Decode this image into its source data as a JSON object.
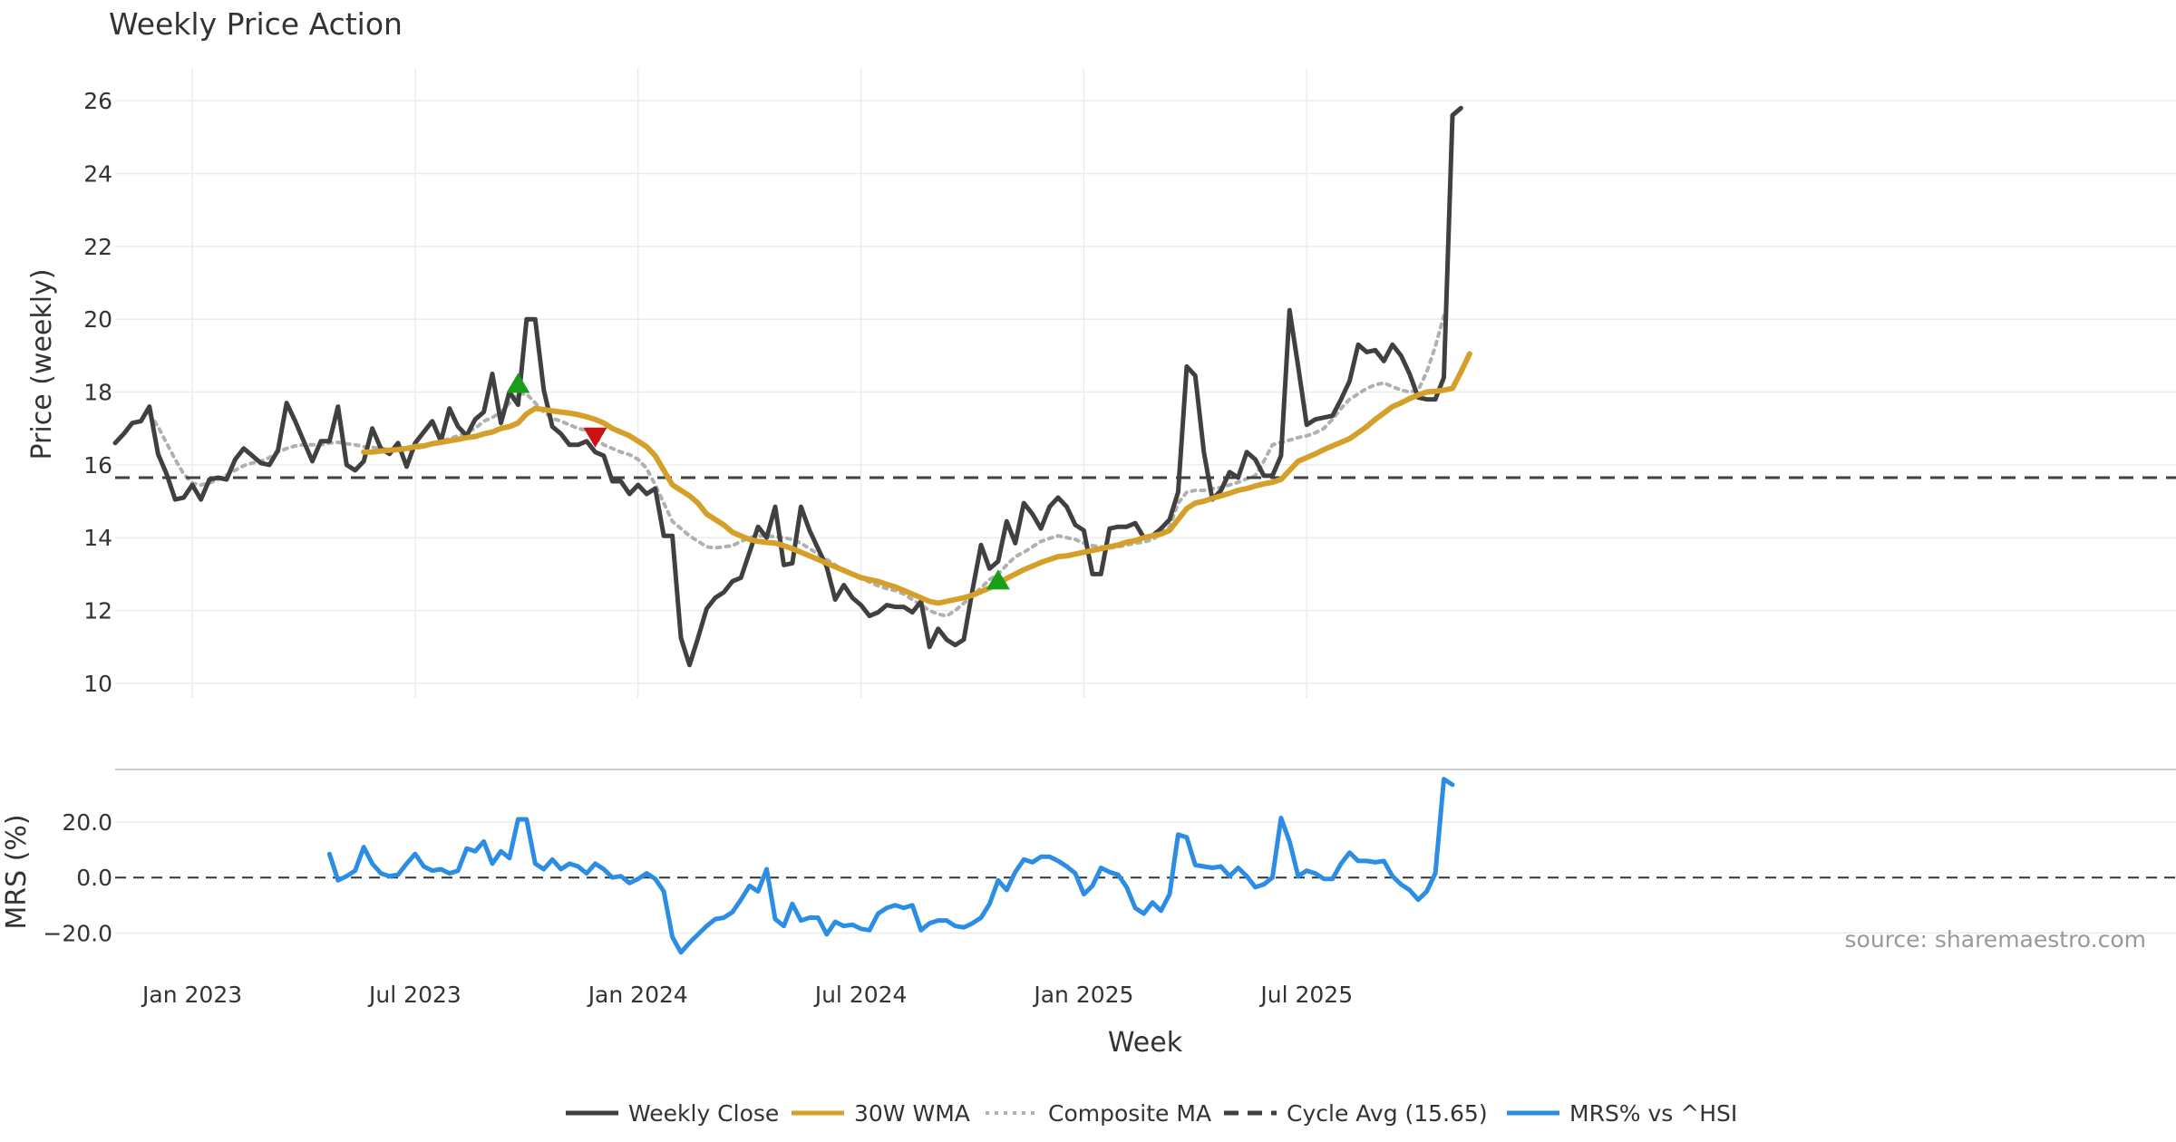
{
  "chart_data": [
    {
      "type": "line",
      "title": "Weekly Price Action",
      "ylabel": "Price (weekly)",
      "xlabel": "Week",
      "ylim": [
        9.6,
        26.9
      ],
      "yticks": [
        10,
        12,
        14,
        16,
        18,
        20,
        22,
        24,
        26
      ],
      "xticks": [
        "Jan 2023",
        "Jul 2023",
        "Jan 2024",
        "Jul 2024",
        "Jan 2025",
        "Jul 2025"
      ],
      "grid": true,
      "x_start_week": 0,
      "series": [
        {
          "name": "Weekly Close",
          "color": "#404040",
          "style": "solid",
          "values": [
            16.6,
            16.85,
            17.15,
            17.2,
            17.6,
            16.3,
            15.75,
            15.05,
            15.1,
            15.45,
            15.05,
            15.6,
            15.65,
            15.6,
            16.15,
            16.45,
            16.25,
            16.05,
            16.0,
            16.4,
            17.7,
            17.2,
            16.65,
            16.1,
            16.65,
            16.65,
            17.6,
            16.0,
            15.85,
            16.1,
            17.0,
            16.45,
            16.3,
            16.6,
            15.95,
            16.6,
            16.9,
            17.2,
            16.65,
            17.55,
            17.05,
            16.8,
            17.25,
            17.45,
            18.5,
            17.15,
            18.0,
            17.65,
            20.0,
            20.0,
            18.05,
            17.05,
            16.85,
            16.55,
            16.55,
            16.65,
            16.35,
            16.25,
            15.55,
            15.55,
            15.2,
            15.45,
            15.2,
            15.35,
            14.05,
            14.05,
            11.25,
            10.5,
            11.25,
            12.05,
            12.35,
            12.5,
            12.8,
            12.9,
            13.6,
            14.3,
            14.0,
            14.85,
            13.25,
            13.3,
            14.85,
            14.2,
            13.7,
            13.2,
            12.3,
            12.7,
            12.35,
            12.15,
            11.85,
            11.95,
            12.15,
            12.1,
            12.1,
            11.95,
            12.25,
            11.0,
            11.5,
            11.2,
            11.05,
            11.2,
            12.55,
            13.8,
            13.15,
            13.35,
            14.45,
            13.85,
            14.95,
            14.65,
            14.25,
            14.85,
            15.1,
            14.85,
            14.35,
            14.2,
            13.0,
            13.0,
            14.25,
            14.3,
            14.3,
            14.4,
            14.0,
            14.05,
            14.25,
            14.5,
            15.25,
            18.7,
            18.45,
            16.35,
            15.05,
            15.3,
            15.8,
            15.65,
            16.35,
            16.15,
            15.7,
            15.7,
            16.25,
            20.25,
            18.7,
            17.1,
            17.25,
            17.3,
            17.35,
            17.8,
            18.3,
            19.3,
            19.1,
            19.15,
            18.85,
            19.3,
            19.0,
            18.5,
            17.85,
            17.8,
            17.8,
            18.4,
            25.6,
            25.8
          ]
        },
        {
          "name": "30W WMA",
          "color": "#d4a02a",
          "style": "solid",
          "start_week": 29,
          "values": [
            16.35,
            16.35,
            16.38,
            16.4,
            16.42,
            16.45,
            16.5,
            16.52,
            16.58,
            16.62,
            16.66,
            16.7,
            16.75,
            16.78,
            16.85,
            16.9,
            17.0,
            17.05,
            17.15,
            17.4,
            17.55,
            17.52,
            17.48,
            17.45,
            17.42,
            17.38,
            17.32,
            17.25,
            17.15,
            17.0,
            16.9,
            16.8,
            16.65,
            16.5,
            16.25,
            15.85,
            15.45,
            15.3,
            15.15,
            14.95,
            14.65,
            14.5,
            14.35,
            14.15,
            14.05,
            13.95,
            13.9,
            13.87,
            13.85,
            13.78,
            13.7,
            13.6,
            13.5,
            13.4,
            13.3,
            13.2,
            13.1,
            13.0,
            12.9,
            12.85,
            12.8,
            12.72,
            12.65,
            12.55,
            12.45,
            12.35,
            12.25,
            12.2,
            12.25,
            12.3,
            12.35,
            12.42,
            12.52,
            12.62,
            12.75,
            12.88,
            13.0,
            13.12,
            13.22,
            13.32,
            13.4,
            13.48,
            13.5,
            13.55,
            13.6,
            13.65,
            13.7,
            13.75,
            13.8,
            13.88,
            13.92,
            14.0,
            14.05,
            14.1,
            14.2,
            14.5,
            14.8,
            14.95,
            15.0,
            15.08,
            15.15,
            15.22,
            15.3,
            15.35,
            15.42,
            15.48,
            15.52,
            15.6,
            15.85,
            16.1,
            16.2,
            16.3,
            16.42,
            16.52,
            16.62,
            16.72,
            16.88,
            17.05,
            17.25,
            17.42,
            17.6,
            17.7,
            17.82,
            17.92,
            18.0,
            18.02,
            18.05,
            18.1,
            18.55,
            19.05
          ]
        },
        {
          "name": "Composite MA",
          "color": "#b0b0b0",
          "style": "dotted",
          "start_week": 4,
          "values": [
            17.4,
            17.05,
            16.6,
            16.15,
            15.75,
            15.5,
            15.45,
            15.5,
            15.6,
            15.72,
            15.85,
            15.98,
            16.05,
            16.1,
            16.2,
            16.35,
            16.45,
            16.52,
            16.55,
            16.55,
            16.55,
            16.6,
            16.62,
            16.58,
            16.55,
            16.5,
            16.48,
            16.45,
            16.42,
            16.4,
            16.42,
            16.45,
            16.5,
            16.58,
            16.65,
            16.72,
            16.8,
            16.9,
            17.0,
            17.2,
            17.3,
            17.45,
            17.7,
            17.95,
            17.95,
            17.7,
            17.45,
            17.28,
            17.2,
            17.1,
            17.0,
            16.95,
            16.75,
            16.55,
            16.45,
            16.35,
            16.28,
            16.15,
            15.9,
            15.45,
            14.95,
            14.45,
            14.25,
            14.05,
            13.9,
            13.75,
            13.72,
            13.75,
            13.78,
            13.9,
            14.0,
            14.05,
            14.05,
            14.02,
            14.0,
            13.95,
            13.85,
            13.7,
            13.55,
            13.4,
            13.25,
            13.1,
            13.0,
            12.9,
            12.78,
            12.68,
            12.6,
            12.55,
            12.45,
            12.3,
            12.15,
            12.0,
            11.9,
            11.85,
            12.0,
            12.2,
            12.4,
            12.62,
            12.85,
            13.0,
            13.25,
            13.48,
            13.6,
            13.75,
            13.9,
            13.98,
            14.05,
            14.0,
            13.95,
            13.85,
            13.78,
            13.75,
            13.72,
            13.75,
            13.8,
            13.85,
            13.88,
            13.95,
            14.1,
            14.3,
            14.95,
            15.25,
            15.3,
            15.3,
            15.35,
            15.38,
            15.45,
            15.52,
            15.62,
            15.7,
            16.1,
            16.55,
            16.62,
            16.68,
            16.75,
            16.8,
            16.88,
            17.0,
            17.25,
            17.55,
            17.8,
            17.95,
            18.1,
            18.2,
            18.25,
            18.15,
            18.05,
            18.0,
            18.05,
            18.55,
            19.25,
            20.1
          ]
        },
        {
          "name": "Cycle Avg (15.65)",
          "color": "#404040",
          "style": "dashed",
          "constant": 15.65
        }
      ],
      "markers": [
        {
          "type": "buy",
          "week": 47,
          "y": 18.25,
          "color": "#1a9e1a"
        },
        {
          "type": "sell",
          "week": 56,
          "y": 16.75,
          "color": "#cc1111"
        },
        {
          "type": "buy",
          "week": 103,
          "y": 12.85,
          "color": "#1a9e1a"
        }
      ]
    },
    {
      "type": "line",
      "ylabel": "MRS (%)",
      "ylim": [
        -31,
        38
      ],
      "yticks": [
        20.0,
        0.0,
        -20.0
      ],
      "yticklabels": [
        "20.0",
        "0.0",
        "−20.0"
      ],
      "zero_line": true,
      "series": [
        {
          "name": "MRS% vs ^HSI",
          "color": "#2b8de3",
          "style": "solid",
          "start_week": 25,
          "values": [
            8.5,
            -1.0,
            0.5,
            2.5,
            11.0,
            5.0,
            1.5,
            0.5,
            1.0,
            5.0,
            8.5,
            4.0,
            2.5,
            3.0,
            1.5,
            2.5,
            10.5,
            9.5,
            13.0,
            5.0,
            9.5,
            7.0,
            21.0,
            21.0,
            5.0,
            3.0,
            6.5,
            3.0,
            5.0,
            4.0,
            1.5,
            5.0,
            3.0,
            0.0,
            0.5,
            -2.0,
            -0.5,
            1.5,
            -0.5,
            -5.0,
            -21.5,
            -27.0,
            -23.5,
            -20.5,
            -17.5,
            -15.0,
            -14.5,
            -12.5,
            -8.0,
            -3.0,
            -5.0,
            3.0,
            -15.0,
            -17.5,
            -9.5,
            -15.5,
            -14.5,
            -14.5,
            -20.5,
            -16.0,
            -17.5,
            -17.0,
            -18.5,
            -19.0,
            -13.0,
            -11.0,
            -10.0,
            -11.0,
            -10.0,
            -19.0,
            -16.5,
            -15.5,
            -15.5,
            -17.5,
            -18.0,
            -16.5,
            -14.5,
            -9.5,
            -1.0,
            -4.5,
            2.0,
            6.5,
            5.5,
            7.5,
            7.5,
            6.0,
            4.0,
            1.5,
            -6.0,
            -3.0,
            3.5,
            2.0,
            1.0,
            -3.5,
            -11.0,
            -13.0,
            -9.0,
            -12.0,
            -6.0,
            15.5,
            14.5,
            4.5,
            4.0,
            3.5,
            4.0,
            0.5,
            3.5,
            0.5,
            -3.5,
            -2.5,
            0.0,
            21.5,
            13.0,
            0.5,
            2.5,
            1.5,
            -0.5,
            -0.5,
            5.0,
            9.0,
            6.0,
            6.0,
            5.5,
            6.0,
            0.5,
            -2.5,
            -4.5,
            -8.0,
            -5.0,
            1.5,
            35.5,
            33.5
          ]
        }
      ]
    }
  ],
  "legend": {
    "position": "bottom",
    "items": [
      {
        "label": "Weekly Close",
        "color": "#404040",
        "style": "solid"
      },
      {
        "label": "30W WMA",
        "color": "#d4a02a",
        "style": "solid"
      },
      {
        "label": "Composite MA",
        "color": "#b0b0b0",
        "style": "dotted"
      },
      {
        "label": "Cycle Avg (15.65)",
        "color": "#404040",
        "style": "dashed"
      },
      {
        "label": "MRS% vs ^HSI",
        "color": "#2b8de3",
        "style": "solid"
      }
    ]
  },
  "source": "source: sharemaestro.com"
}
